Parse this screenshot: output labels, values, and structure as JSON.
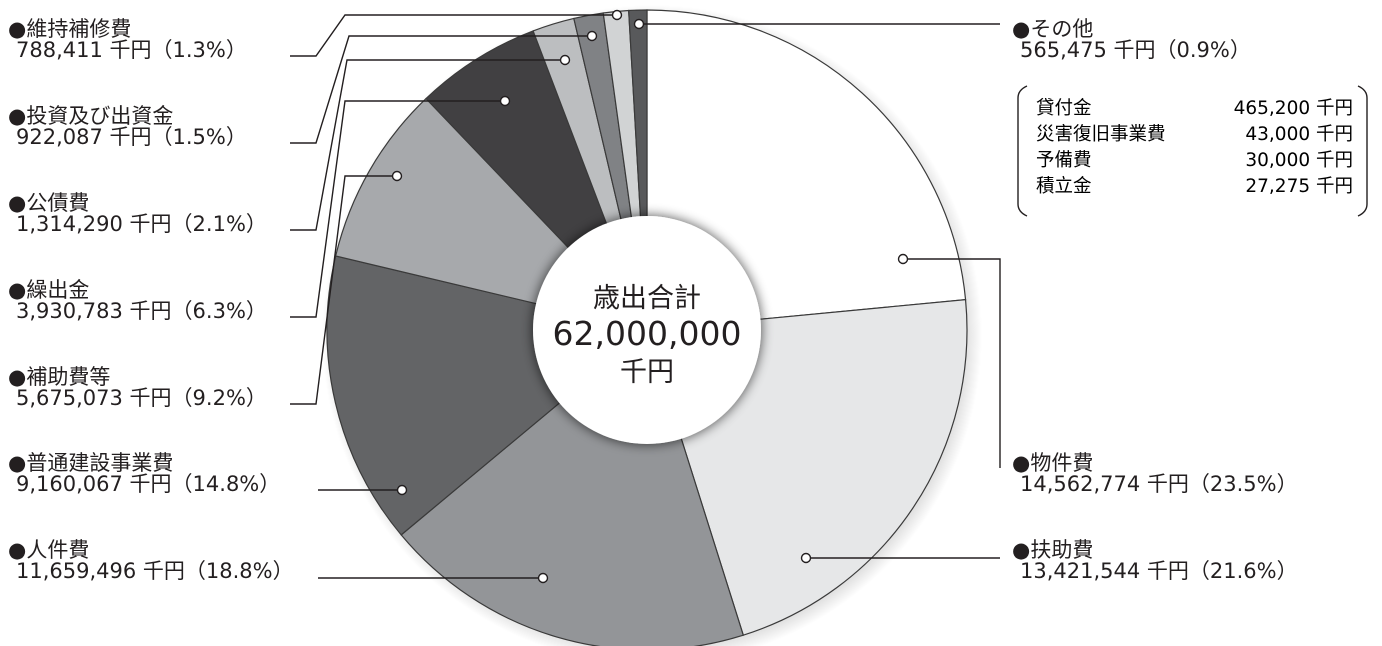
{
  "colors": {
    "leader": "#231f20",
    "text": "#231f20",
    "slice_border": "#3a3a3a"
  },
  "center": {
    "title": "歳出合計",
    "total": "62,000,000",
    "unit": "千円"
  },
  "other_breakdown": [
    {
      "name": "貸付金",
      "value": "465,200 千円"
    },
    {
      "name": "災害復旧事業費",
      "value": "43,000 千円"
    },
    {
      "name": "予備費",
      "value": "30,000 千円"
    },
    {
      "name": "積立金",
      "value": "27,275 千円"
    }
  ],
  "chart_data": {
    "type": "pie",
    "title": "歳出合計",
    "total": 62000000,
    "unit": "千円",
    "slices": [
      {
        "name": "物件費",
        "value": 14562774,
        "percent": 23.5,
        "label": "●物件費",
        "value_label": "14,562,774 千円（23.5%）",
        "color": "#ffffff"
      },
      {
        "name": "扶助費",
        "value": 13421544,
        "percent": 21.6,
        "label": "●扶助費",
        "value_label": "13,421,544 千円（21.6%）",
        "color": "#e6e7e8"
      },
      {
        "name": "人件費",
        "value": 11659496,
        "percent": 18.8,
        "label": "●人件費",
        "value_label": "11,659,496 千円（18.8%）",
        "color": "#939598"
      },
      {
        "name": "普通建設事業費",
        "value": 9160067,
        "percent": 14.8,
        "label": "●普通建設事業費",
        "value_label": "9,160,067 千円（14.8%）",
        "color": "#636466"
      },
      {
        "name": "補助費等",
        "value": 5675073,
        "percent": 9.2,
        "label": "●補助費等",
        "value_label": "5,675,073 千円（9.2%）",
        "color": "#a7a9ac"
      },
      {
        "name": "繰出金",
        "value": 3930783,
        "percent": 6.3,
        "label": "●繰出金",
        "value_label": "3,930,783 千円（6.3%）",
        "color": "#414042"
      },
      {
        "name": "公債費",
        "value": 1314290,
        "percent": 2.1,
        "label": "●公債費",
        "value_label": "1,314,290 千円（2.1%）",
        "color": "#bcbec0"
      },
      {
        "name": "投資及び出資金",
        "value": 922087,
        "percent": 1.5,
        "label": "●投資及び出資金",
        "value_label": "922,087 千円（1.5%）",
        "color": "#808285"
      },
      {
        "name": "維持補修費",
        "value": 788411,
        "percent": 1.3,
        "label": "●維持補修費",
        "value_label": "788,411 千円（1.3%）",
        "color": "#d1d3d4"
      },
      {
        "name": "その他",
        "value": 565475,
        "percent": 0.9,
        "label": "●その他",
        "value_label": "565,475 千円（0.9%）",
        "color": "#58595b"
      }
    ]
  }
}
